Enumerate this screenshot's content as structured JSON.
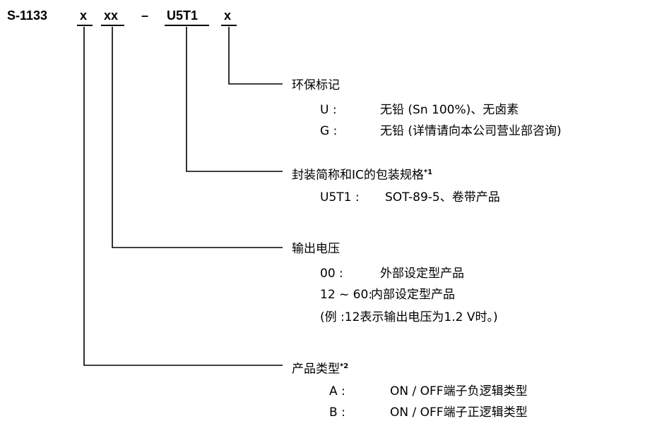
{
  "part_number": {
    "prefix": "S-1133",
    "seg_pkg_env": "x",
    "seg_voltage": "xx",
    "dash": "–",
    "seg_package": "U5T1",
    "seg_env": "x"
  },
  "env_code": {
    "title": "环保标记",
    "items": [
      {
        "code": "U :",
        "desc": "无铅 (Sn 100%)、无卤素"
      },
      {
        "code": "G :",
        "desc": "无铅 (详情请向本公司营业部咨询)"
      }
    ]
  },
  "package": {
    "title": "封装简称和IC的包装规格",
    "note": "*1",
    "items": [
      {
        "code": "U5T1 :",
        "desc": "SOT-89-5、卷带产品"
      }
    ]
  },
  "voltage": {
    "title": "输出电压",
    "items": [
      {
        "code": "00 :",
        "desc": "外部设定型产品"
      },
      {
        "code": "12 ~ 60:",
        "desc": "内部设定型产品"
      }
    ],
    "example": "(例 :12表示输出电压为1.2 V时。)"
  },
  "product_type": {
    "title": "产品类型",
    "note": "*2",
    "items": [
      {
        "code": "A :",
        "desc": "ON / OFF端子负逻辑类型"
      },
      {
        "code": "B :",
        "desc": "ON / OFF端子正逻辑类型"
      }
    ]
  }
}
